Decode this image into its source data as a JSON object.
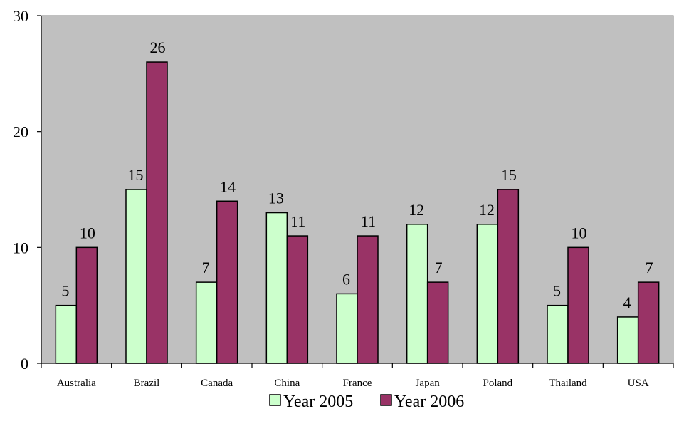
{
  "chart_data": {
    "type": "bar",
    "categories": [
      "Australia",
      "Brazil",
      "Canada",
      "China",
      "France",
      "Japan",
      "Poland",
      "Thailand",
      "USA"
    ],
    "series": [
      {
        "name": "Year 2005",
        "values": [
          5,
          15,
          7,
          13,
          6,
          12,
          12,
          5,
          4
        ],
        "color": "#ccffcc"
      },
      {
        "name": "Year 2006",
        "values": [
          10,
          26,
          14,
          11,
          11,
          7,
          15,
          10,
          7
        ],
        "color": "#993366"
      }
    ],
    "ylim": [
      0,
      30
    ],
    "yticks": [
      0,
      10,
      20,
      30
    ],
    "plot_background": "#c0c0c0",
    "grid": false,
    "legend_position": "bottom"
  }
}
